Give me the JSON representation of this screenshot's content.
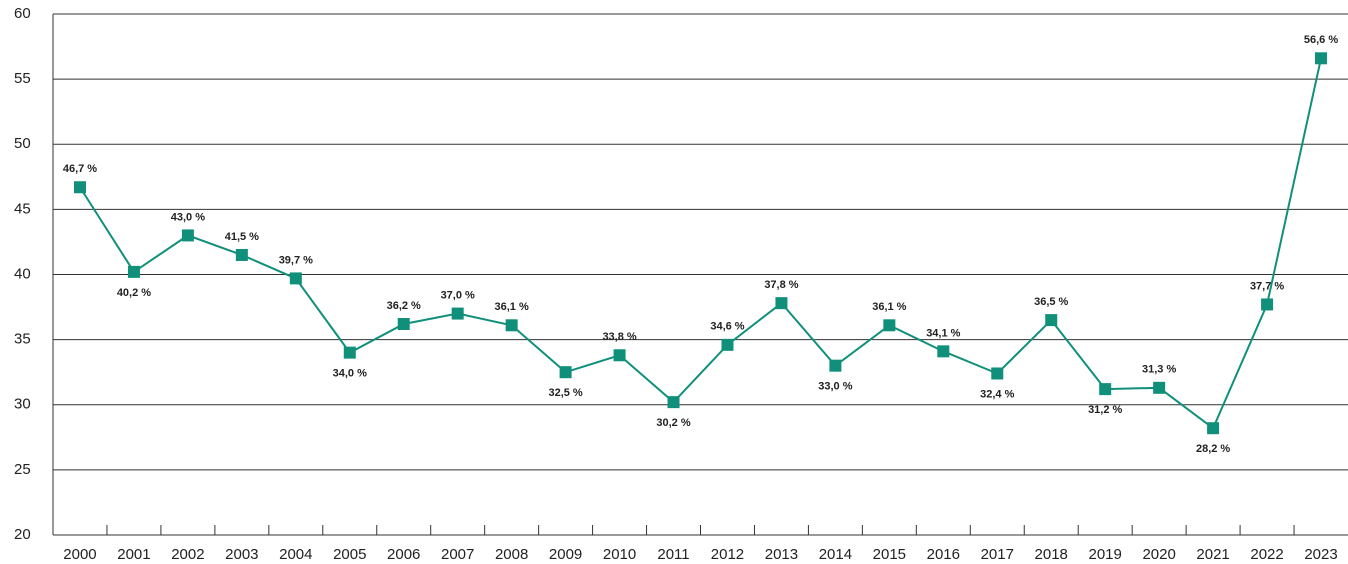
{
  "chart_data": {
    "type": "line",
    "categories": [
      "2000",
      "2001",
      "2002",
      "2003",
      "2004",
      "2005",
      "2006",
      "2007",
      "2008",
      "2009",
      "2010",
      "2011",
      "2012",
      "2013",
      "2014",
      "2015",
      "2016",
      "2017",
      "2018",
      "2019",
      "2020",
      "2021",
      "2022",
      "2023"
    ],
    "values": [
      46.7,
      40.2,
      43.0,
      41.5,
      39.7,
      34.0,
      36.2,
      37.0,
      36.1,
      32.5,
      33.8,
      30.2,
      34.6,
      37.8,
      33.0,
      36.1,
      34.1,
      32.4,
      36.5,
      31.2,
      31.3,
      28.2,
      37.7,
      56.6
    ],
    "value_labels": [
      "46,7 %",
      "40,2 %",
      "43,0 %",
      "41,5 %",
      "39,7 %",
      "34,0 %",
      "36,2 %",
      "37,0 %",
      "36,1 %",
      "32,5 %",
      "33,8 %",
      "30,2 %",
      "34,6 %",
      "37,8 %",
      "33,0 %",
      "36,1 %",
      "34,1 %",
      "32,4 %",
      "36,5 %",
      "31,2 %",
      "31,3 %",
      "28,2 %",
      "37,7 %",
      "56,6 %"
    ],
    "color": "#10907a",
    "ylim": [
      20,
      60
    ],
    "yticks": [
      20,
      25,
      30,
      35,
      40,
      45,
      50,
      55,
      60
    ],
    "grid": true
  }
}
